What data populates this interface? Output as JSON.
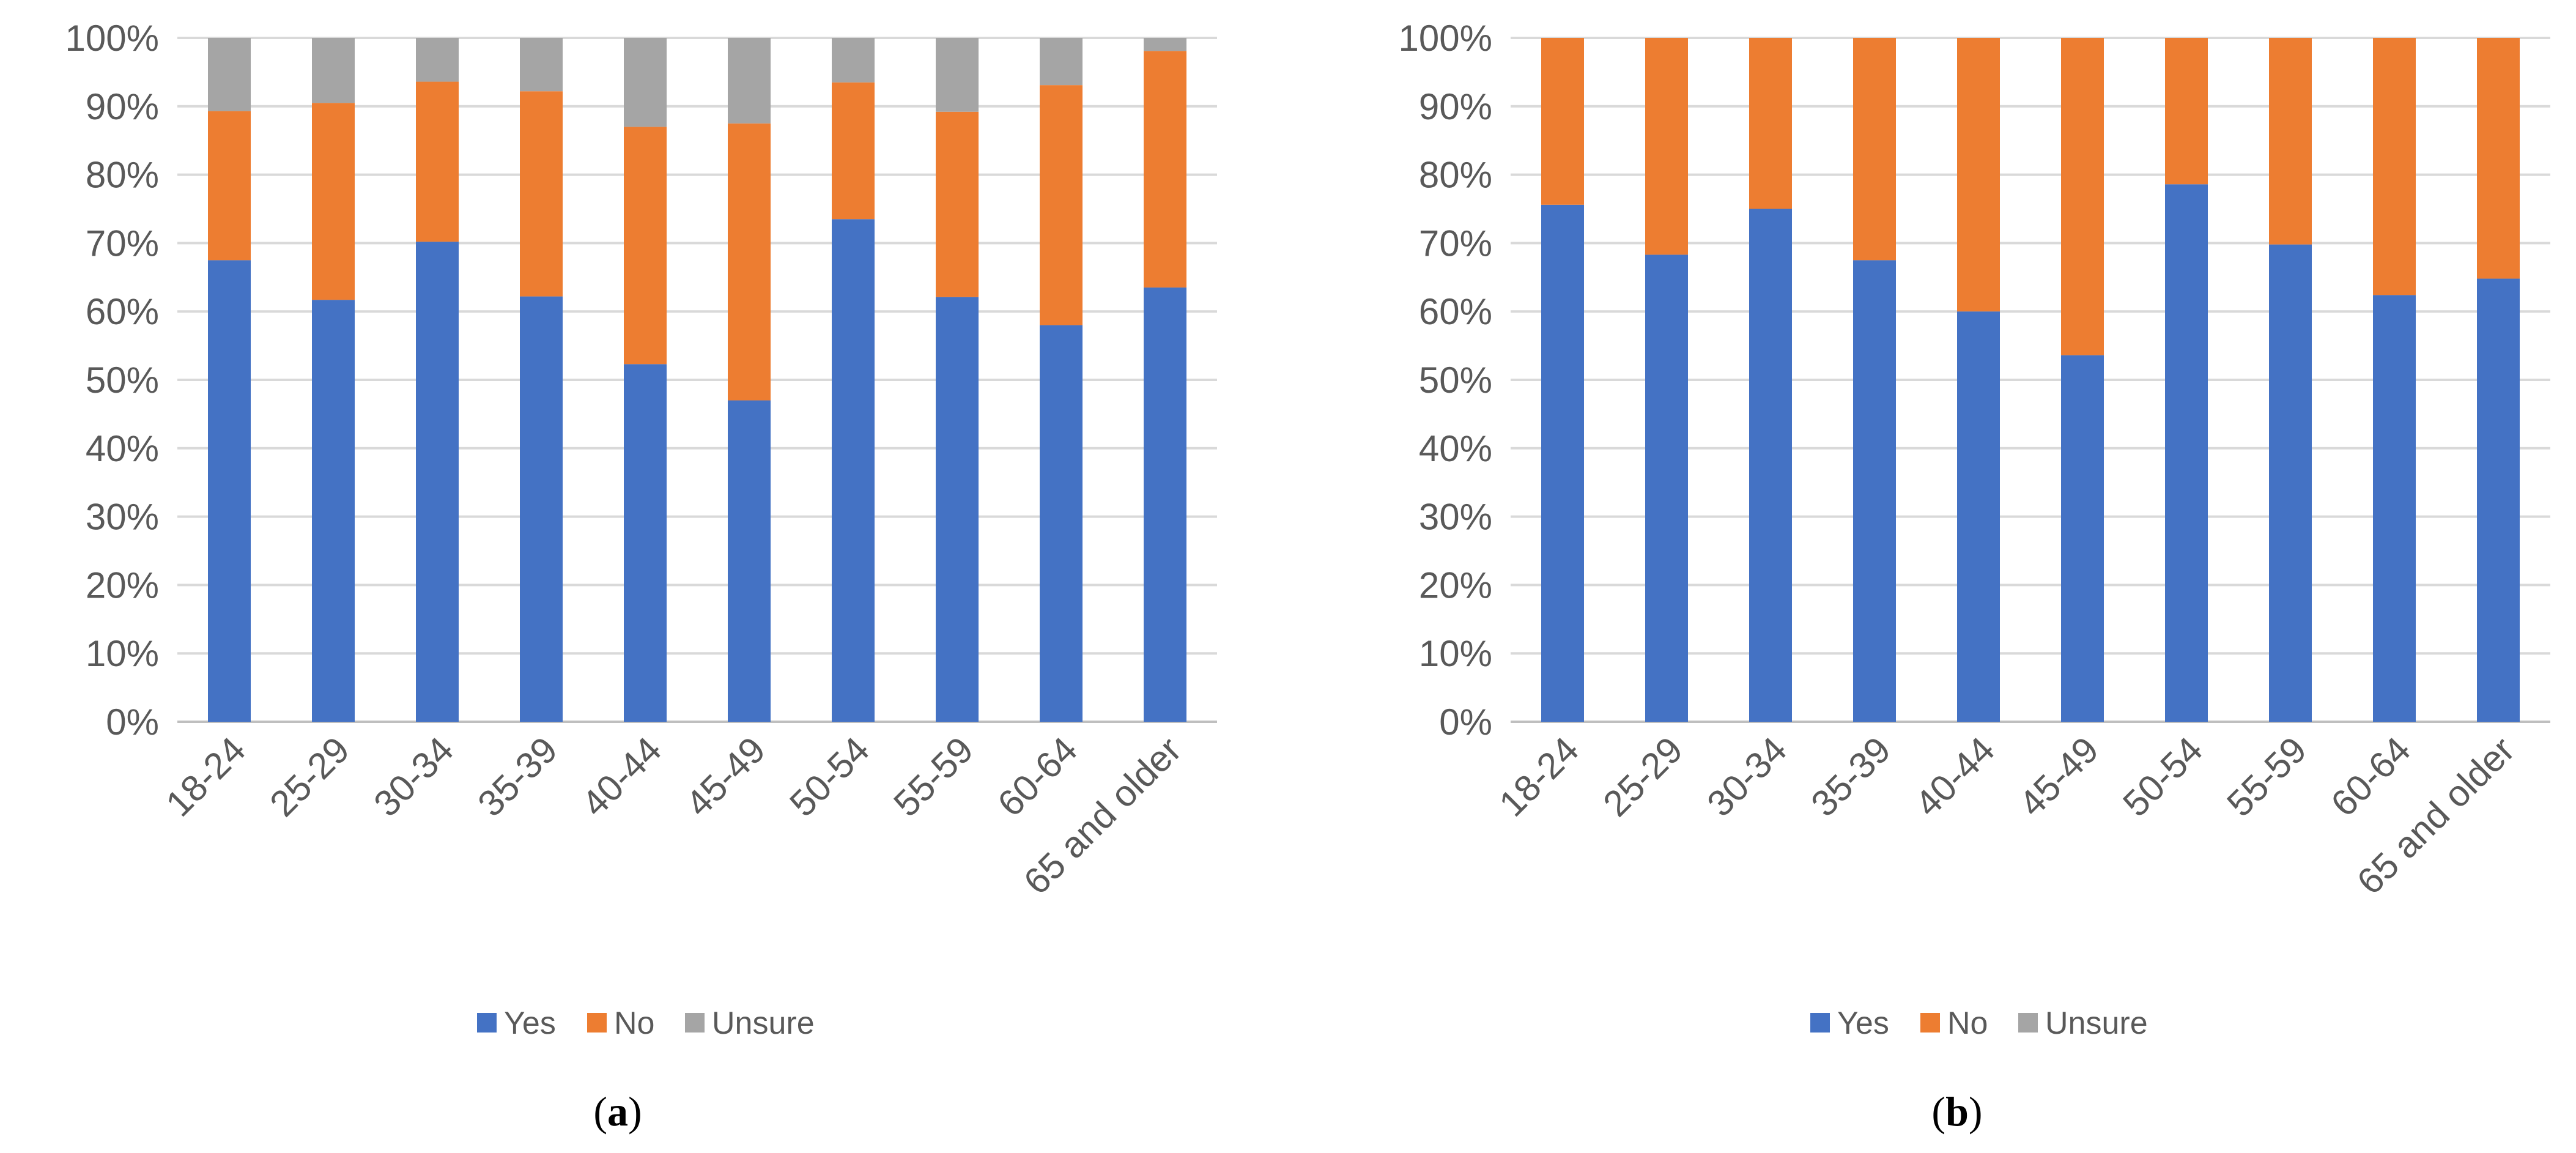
{
  "chart_data": [
    {
      "type": "bar",
      "stacked": true,
      "panel_label": "a",
      "categories": [
        "18-24",
        "25-29",
        "30-34",
        "35-39",
        "40-44",
        "45-49",
        "50-54",
        "55-59",
        "60-64",
        "65 and older"
      ],
      "series": [
        {
          "name": "Yes",
          "color": "#4472C4",
          "values": [
            67.5,
            61.7,
            70.2,
            62.2,
            52.3,
            47.0,
            73.5,
            62.1,
            58.0,
            63.5
          ]
        },
        {
          "name": "No",
          "color": "#ED7D31",
          "values": [
            21.8,
            28.8,
            23.4,
            30.0,
            34.7,
            40.5,
            20.0,
            27.1,
            35.1,
            34.6
          ]
        },
        {
          "name": "Unsure",
          "color": "#A5A5A5",
          "values": [
            10.7,
            9.5,
            6.4,
            7.8,
            13.0,
            12.5,
            6.5,
            10.8,
            6.9,
            1.9
          ]
        }
      ],
      "ylim": [
        0,
        100
      ],
      "yticks": [
        "0%",
        "10%",
        "20%",
        "30%",
        "40%",
        "50%",
        "60%",
        "70%",
        "80%",
        "90%",
        "100%"
      ],
      "grid": true,
      "legend": "bottom"
    },
    {
      "type": "bar",
      "stacked": true,
      "panel_label": "b",
      "categories": [
        "18-24",
        "25-29",
        "30-34",
        "35-39",
        "40-44",
        "45-49",
        "50-54",
        "55-59",
        "60-64",
        "65 and older"
      ],
      "series": [
        {
          "name": "Yes",
          "color": "#4472C4",
          "values": [
            75.6,
            68.3,
            75.0,
            67.5,
            60.0,
            53.6,
            78.6,
            69.8,
            62.4,
            64.8
          ]
        },
        {
          "name": "No",
          "color": "#ED7D31",
          "values": [
            24.4,
            31.7,
            25.0,
            32.5,
            40.0,
            46.4,
            21.4,
            30.2,
            37.6,
            35.2
          ]
        },
        {
          "name": "Unsure",
          "color": "#A5A5A5",
          "values": [
            0,
            0,
            0,
            0,
            0,
            0,
            0,
            0,
            0,
            0
          ]
        }
      ],
      "ylim": [
        0,
        100
      ],
      "yticks": [
        "0%",
        "10%",
        "20%",
        "30%",
        "40%",
        "50%",
        "60%",
        "70%",
        "80%",
        "90%",
        "100%"
      ],
      "grid": true,
      "legend": "bottom"
    }
  ]
}
